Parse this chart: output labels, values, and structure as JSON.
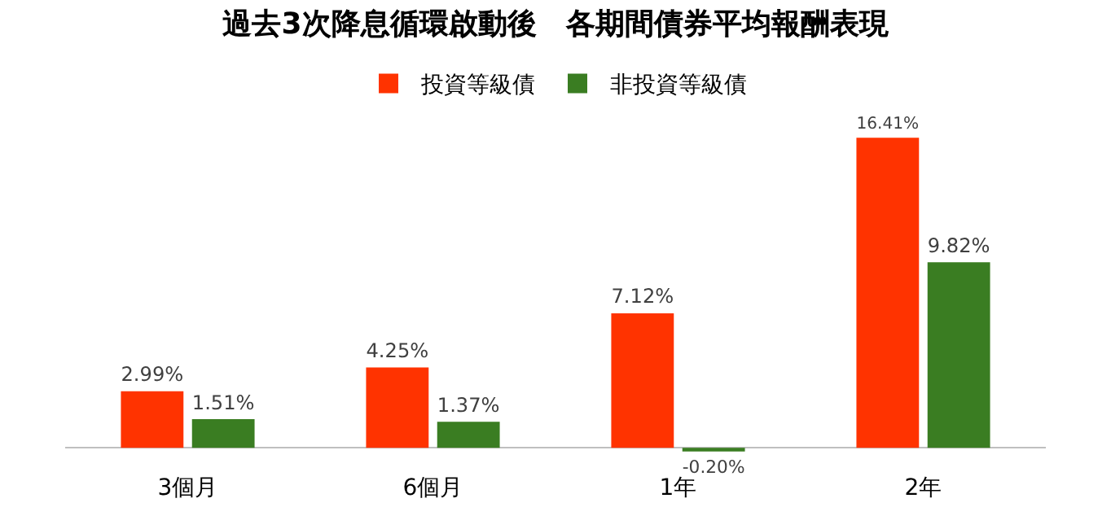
{
  "chart_data": {
    "type": "bar",
    "title": "過去3次降息循環啟動後　各期間債券平均報酬表現",
    "categories": [
      "3個月",
      "6個月",
      "1年",
      "2年"
    ],
    "series": [
      {
        "name": "投資等級債",
        "color": "#ff3300",
        "values": [
          2.99,
          4.25,
          7.12,
          16.41
        ],
        "value_labels": [
          "2.99%",
          "4.25%",
          "7.12%",
          "16.41%"
        ]
      },
      {
        "name": "非投資等級債",
        "color": "#3a7d22",
        "values": [
          1.51,
          1.37,
          -0.2,
          9.82
        ],
        "value_labels": [
          "1.51%",
          "1.37%",
          "-0.20%",
          "9.82%"
        ]
      }
    ],
    "legend": "top"
  }
}
